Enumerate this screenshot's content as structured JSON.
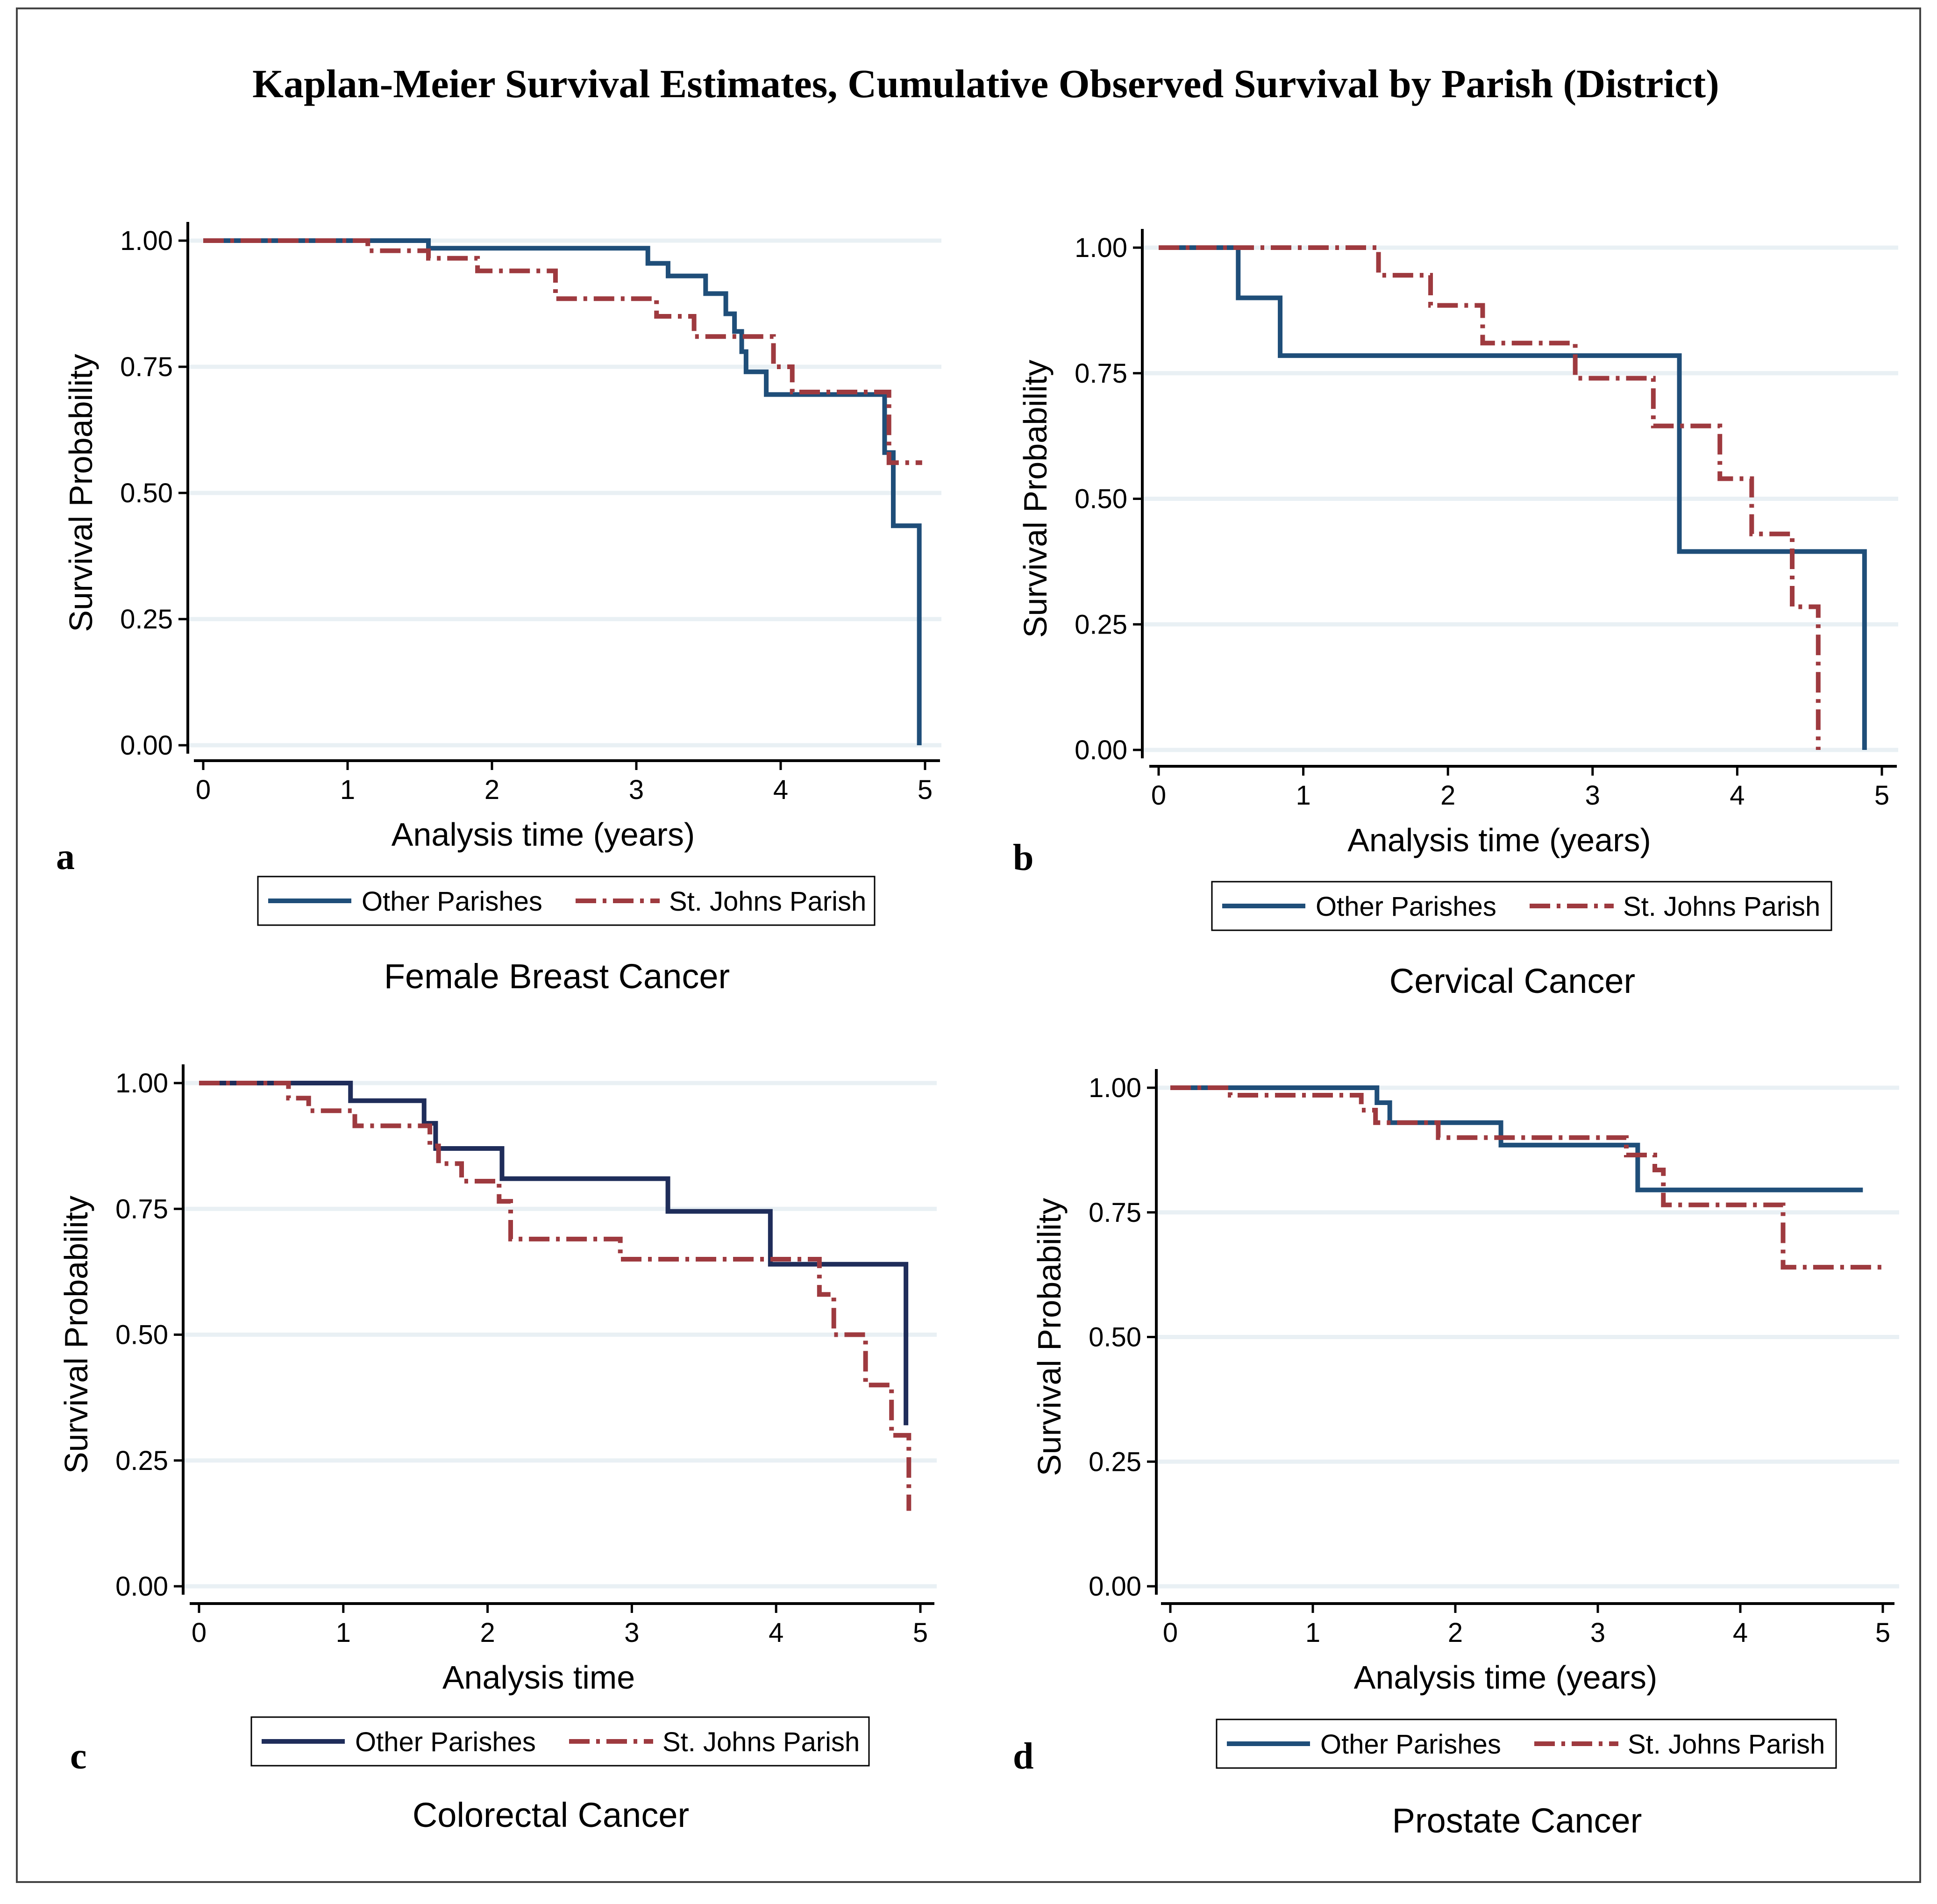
{
  "figure_title": "Kaplan-Meier Survival Estimates,  Cumulative Observed Survival by Parish (District)",
  "colors": {
    "other": "#1f4e79",
    "other_c": "#1f2d5a",
    "stjohn": "#9e3a3f",
    "grid": "#e9f0f4",
    "axis": "#000000",
    "frame": "#444444"
  },
  "legend_labels": [
    "Other Parishes",
    "St. Johns Parish"
  ],
  "chart_data": [
    {
      "type": "line",
      "panel_letter": "a",
      "title": "Female Breast Cancer",
      "xlabel": "Analysis time (years)",
      "ylabel": "Survival Probability",
      "xlim": [
        0,
        5
      ],
      "ylim": [
        0,
        1
      ],
      "x_ticks": [
        "0",
        "1",
        "2",
        "3",
        "4",
        "5"
      ],
      "y_ticks": [
        "0.00",
        "0.25",
        "0.50",
        "0.75",
        "1.00"
      ],
      "series": [
        {
          "name": "Other Parishes",
          "steps": [
            [
              0,
              1.0
            ],
            [
              1.56,
              0.985
            ],
            [
              3.08,
              0.955
            ],
            [
              3.22,
              0.93
            ],
            [
              3.48,
              0.895
            ],
            [
              3.62,
              0.855
            ],
            [
              3.68,
              0.82
            ],
            [
              3.73,
              0.78
            ],
            [
              3.76,
              0.74
            ],
            [
              3.9,
              0.695
            ],
            [
              4.72,
              0.58
            ],
            [
              4.78,
              0.435
            ],
            [
              4.96,
              0.0
            ]
          ],
          "end_x": 4.96
        },
        {
          "name": "St. Johns Parish",
          "steps": [
            [
              0,
              1.0
            ],
            [
              1.14,
              0.98
            ],
            [
              1.56,
              0.965
            ],
            [
              1.9,
              0.94
            ],
            [
              2.44,
              0.885
            ],
            [
              3.14,
              0.85
            ],
            [
              3.4,
              0.81
            ],
            [
              3.95,
              0.75
            ],
            [
              4.08,
              0.7
            ],
            [
              4.75,
              0.56
            ]
          ],
          "end_x": 4.98
        }
      ]
    },
    {
      "type": "line",
      "panel_letter": "b",
      "title": "Cervical Cancer",
      "xlabel": "Analysis time (years)",
      "ylabel": "Survival Probability",
      "xlim": [
        0,
        5
      ],
      "ylim": [
        0,
        1
      ],
      "x_ticks": [
        "0",
        "1",
        "2",
        "3",
        "4",
        "5"
      ],
      "y_ticks": [
        "0.00",
        "0.25",
        "0.50",
        "0.75",
        "1.00"
      ],
      "series": [
        {
          "name": "Other Parishes",
          "steps": [
            [
              0,
              1.0
            ],
            [
              0.55,
              0.9
            ],
            [
              0.84,
              0.785
            ],
            [
              3.6,
              0.395
            ],
            [
              4.88,
              0.0
            ]
          ],
          "end_x": 4.88
        },
        {
          "name": "St. Johns Parish",
          "steps": [
            [
              0,
              1.0
            ],
            [
              1.52,
              0.945
            ],
            [
              1.88,
              0.885
            ],
            [
              2.24,
              0.81
            ],
            [
              2.88,
              0.74
            ],
            [
              3.42,
              0.645
            ],
            [
              3.88,
              0.54
            ],
            [
              4.1,
              0.43
            ],
            [
              4.38,
              0.285
            ],
            [
              4.56,
              0.0
            ]
          ],
          "end_x": 4.56
        }
      ]
    },
    {
      "type": "line",
      "panel_letter": "c",
      "title": "Colorectal Cancer",
      "xlabel": "Analysis time",
      "ylabel": "Survival Probability",
      "xlim": [
        0,
        5
      ],
      "ylim": [
        0,
        1
      ],
      "x_ticks": [
        "0",
        "1",
        "2",
        "3",
        "4",
        "5"
      ],
      "y_ticks": [
        "0.00",
        "0.25",
        "0.50",
        "0.75",
        "1.00"
      ],
      "series": [
        {
          "name": "Other Parishes",
          "steps": [
            [
              0,
              1.0
            ],
            [
              1.05,
              0.965
            ],
            [
              1.56,
              0.92
            ],
            [
              1.64,
              0.87
            ],
            [
              2.1,
              0.81
            ],
            [
              3.25,
              0.745
            ],
            [
              3.96,
              0.64
            ],
            [
              4.9,
              0.32
            ]
          ],
          "end_x": 4.9
        },
        {
          "name": "St. Johns Parish",
          "steps": [
            [
              0,
              1.0
            ],
            [
              0.62,
              0.97
            ],
            [
              0.76,
              0.945
            ],
            [
              1.08,
              0.915
            ],
            [
              1.6,
              0.875
            ],
            [
              1.66,
              0.84
            ],
            [
              1.82,
              0.805
            ],
            [
              2.08,
              0.765
            ],
            [
              2.16,
              0.69
            ],
            [
              2.92,
              0.65
            ],
            [
              4.3,
              0.58
            ],
            [
              4.4,
              0.5
            ],
            [
              4.62,
              0.4
            ],
            [
              4.8,
              0.3
            ],
            [
              4.92,
              0.15
            ]
          ],
          "end_x": 4.92
        }
      ]
    },
    {
      "type": "line",
      "panel_letter": "d",
      "title": "Prostate Cancer",
      "xlabel": "Analysis time (years)",
      "ylabel": "Survival Probability",
      "xlim": [
        0,
        5
      ],
      "ylim": [
        0,
        1
      ],
      "x_ticks": [
        "0",
        "1",
        "2",
        "3",
        "4",
        "5"
      ],
      "y_ticks": [
        "0.00",
        "0.25",
        "0.50",
        "0.75",
        "1.00"
      ],
      "series": [
        {
          "name": "Other Parishes",
          "steps": [
            [
              0,
              1.0
            ],
            [
              1.45,
              0.97
            ],
            [
              1.54,
              0.93
            ],
            [
              2.32,
              0.885
            ],
            [
              3.28,
              0.795
            ]
          ],
          "end_x": 4.86
        },
        {
          "name": "St. Johns Parish",
          "steps": [
            [
              0,
              1.0
            ],
            [
              0.42,
              0.985
            ],
            [
              1.34,
              0.955
            ],
            [
              1.44,
              0.93
            ],
            [
              1.88,
              0.9
            ],
            [
              3.2,
              0.865
            ],
            [
              3.4,
              0.835
            ],
            [
              3.46,
              0.765
            ],
            [
              4.3,
              0.64
            ]
          ],
          "end_x": 5.0
        }
      ]
    }
  ]
}
